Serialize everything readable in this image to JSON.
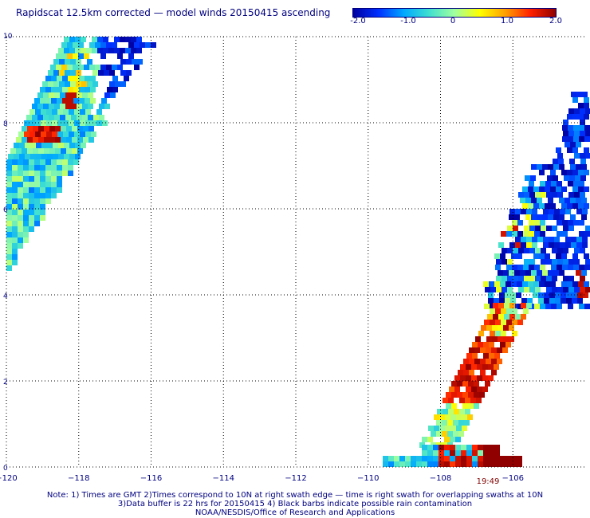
{
  "title": "Rapidscat 12.5km corrected — model winds 20150415 ascending",
  "colorbar": {
    "ticks": [
      "-2.0",
      "-1.0",
      "0",
      "1.0",
      "2.0"
    ],
    "range": [
      -2.0,
      2.0
    ],
    "colors": [
      "#0000a0",
      "#0030ff",
      "#00a8ff",
      "#40e0d0",
      "#a0ffa0",
      "#ffff00",
      "#ffa000",
      "#ff2000",
      "#900000"
    ]
  },
  "map": {
    "lon_range": [
      -120,
      -104
    ],
    "lat_range": [
      0,
      10
    ],
    "x_ticks": [
      "-120",
      "-118",
      "-116",
      "-114",
      "-112",
      "-110",
      "-108",
      "-106"
    ],
    "y_ticks": [
      "0",
      "2",
      "4",
      "6",
      "8",
      "10"
    ],
    "swath_time": "19:49",
    "time_color": "#800000"
  },
  "notes": [
    "Note: 1) Times are GMT 2)Times correspond to 10N at right swath edge — time is right swath for overlapping swaths at 10N",
    "3)Data buffer is 22 hrs for 20150415 4) Black barbs indicate possible rain contamination",
    "NOAA/NESDIS/Office of Research and Applications"
  ]
}
